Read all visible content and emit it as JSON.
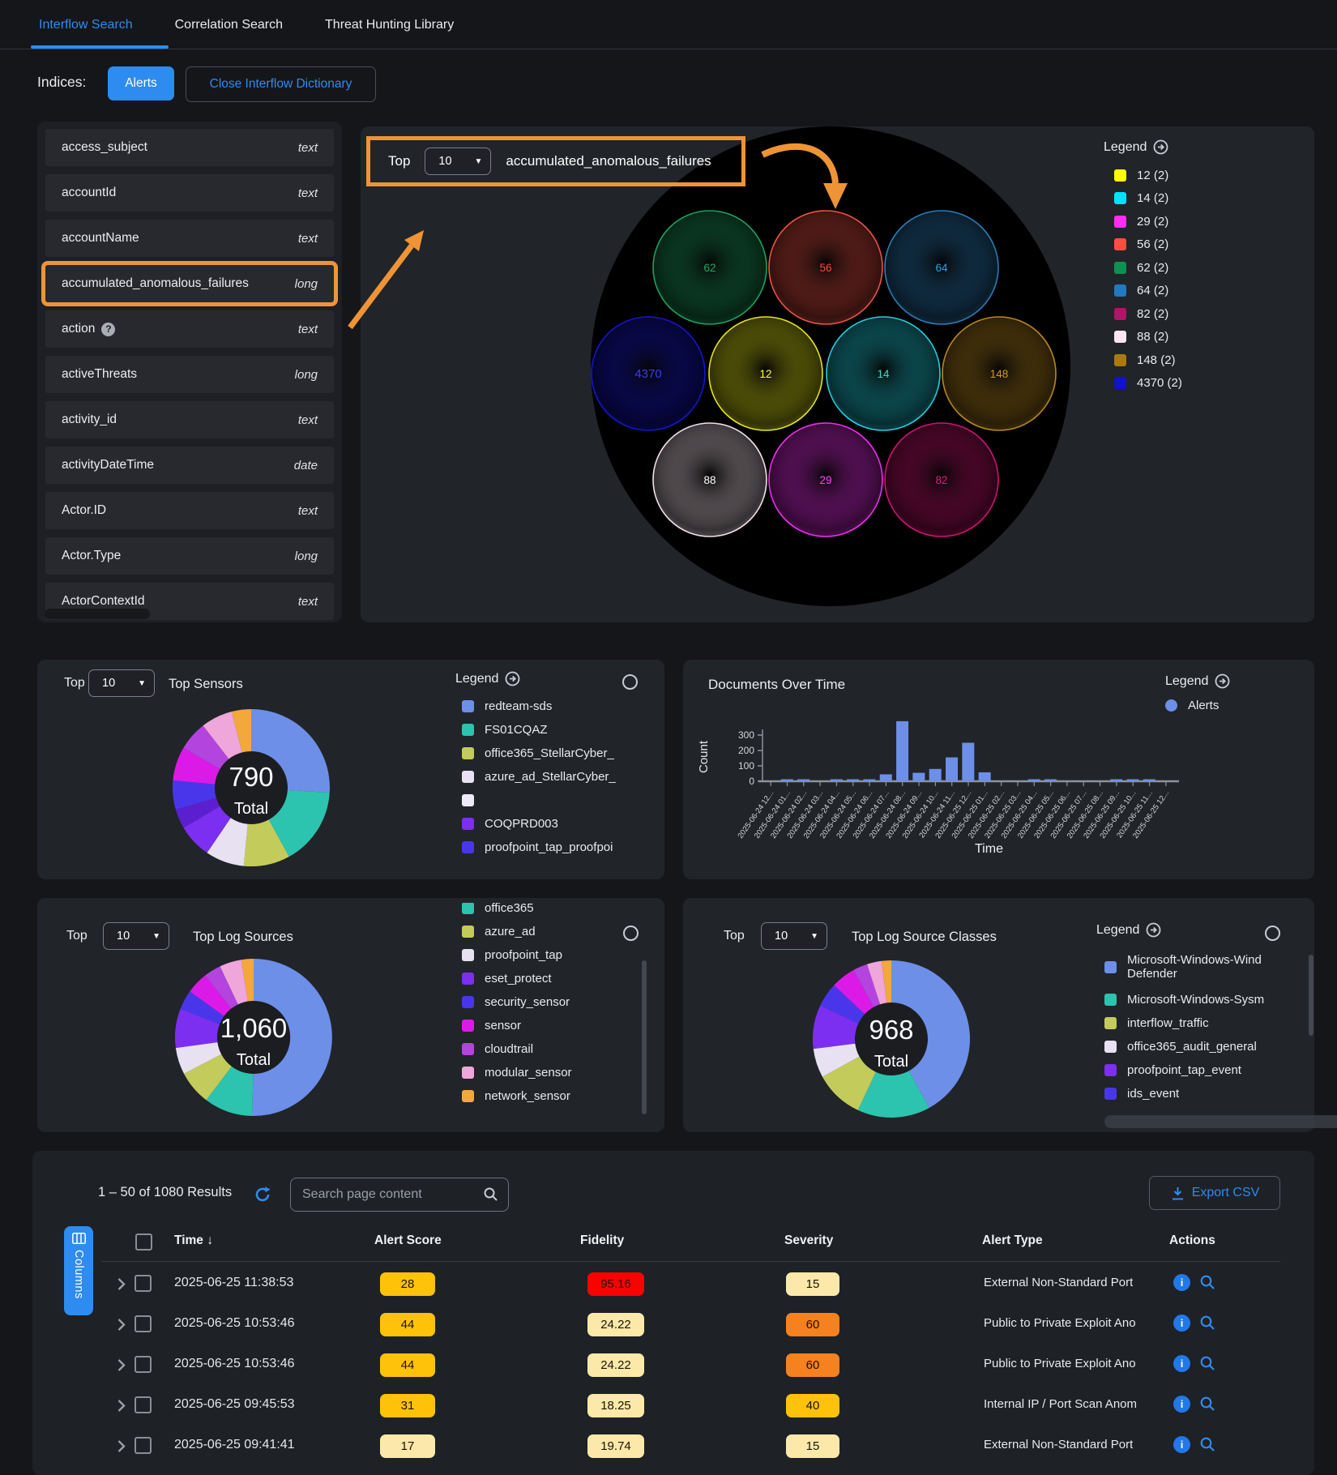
{
  "tabs": [
    {
      "label": "Interflow Search",
      "active": true
    },
    {
      "label": "Correlation Search",
      "active": false
    },
    {
      "label": "Threat Hunting Library",
      "active": false
    }
  ],
  "indices": {
    "label": "Indices:",
    "alerts": "Alerts",
    "close": "Close Interflow Dictionary"
  },
  "fields": {
    "items": [
      {
        "name": "access_subject",
        "type": "text"
      },
      {
        "name": "accountId",
        "type": "text"
      },
      {
        "name": "accountName",
        "type": "text"
      },
      {
        "name": "accumulated_anomalous_failures",
        "type": "long",
        "highlighted": true
      },
      {
        "name": "action",
        "type": "text",
        "help": true
      },
      {
        "name": "activeThreats",
        "type": "long"
      },
      {
        "name": "activity_id",
        "type": "text"
      },
      {
        "name": "activityDateTime",
        "type": "date"
      },
      {
        "name": "Actor.ID",
        "type": "text"
      },
      {
        "name": "Actor.Type",
        "type": "long"
      },
      {
        "name": "ActorContextId",
        "type": "text"
      }
    ]
  },
  "bubble": {
    "top_label": "Top",
    "top_value": "10",
    "title": "accumulated_anomalous_failures",
    "legend_title": "Legend",
    "type": "packed-bubbles",
    "bubbles": [
      {
        "value": "62",
        "color": "#1ca05e",
        "text_color": "#18b060"
      },
      {
        "value": "56",
        "color": "#ef5044",
        "text_color": "#ff453a"
      },
      {
        "value": "64",
        "color": "#2b7cb8",
        "text_color": "#2da0e8"
      },
      {
        "value": "4370",
        "color": "#1515d0",
        "text_color": "#3c3cf0"
      },
      {
        "value": "12",
        "color": "#e4e414",
        "text_color": "#ffff3a"
      },
      {
        "value": "14",
        "color": "#1ecfe0",
        "text_color": "#20e8c8"
      },
      {
        "value": "148",
        "color": "#b8871c",
        "text_color": "#cf9a1e"
      },
      {
        "value": "88",
        "color": "#f2dfe9",
        "text_color": "#ffffff"
      },
      {
        "value": "29",
        "color": "#f02cf0",
        "text_color": "#ff45ff"
      },
      {
        "value": "82",
        "color": "#d01272",
        "text_color": "#ef1680"
      }
    ],
    "legend": [
      {
        "label": "12 (2)",
        "color": "#ffff00"
      },
      {
        "label": "14 (2)",
        "color": "#00e0ff"
      },
      {
        "label": "29 (2)",
        "color": "#ff2ef0"
      },
      {
        "label": "56 (2)",
        "color": "#ff4d42"
      },
      {
        "label": "62 (2)",
        "color": "#0d9152"
      },
      {
        "label": "64 (2)",
        "color": "#2279bd"
      },
      {
        "label": "82 (2)",
        "color": "#b01568"
      },
      {
        "label": "88 (2)",
        "color": "#ffe6f2"
      },
      {
        "label": "148 (2)",
        "color": "#a87a16"
      },
      {
        "label": "4370 (2)",
        "color": "#1212c8"
      }
    ]
  },
  "sensors": {
    "top_label": "Top",
    "top_value": "10",
    "title": "Top Sensors",
    "total": "790",
    "total_label": "Total",
    "legend_title": "Legend",
    "type": "donut",
    "slices": [
      {
        "pct": 26,
        "color": "#6e8fe8"
      },
      {
        "pct": 16,
        "color": "#2cc4ae"
      },
      {
        "pct": 9.5,
        "color": "#c3cc5a"
      },
      {
        "pct": 8,
        "color": "#e7e1f2"
      },
      {
        "pct": 7,
        "color": "#7c2ff0"
      },
      {
        "pct": 4,
        "color": "#5b1fd0"
      },
      {
        "pct": 6,
        "color": "#4a36ea"
      },
      {
        "pct": 7,
        "color": "#dc1ae8"
      },
      {
        "pct": 6,
        "color": "#b344de"
      },
      {
        "pct": 6.5,
        "color": "#efa6da"
      },
      {
        "pct": 4,
        "color": "#f3a83c"
      }
    ],
    "legend": [
      {
        "label": "redteam-sds",
        "color": "#6e8fe8"
      },
      {
        "label": "FS01CQAZ",
        "color": "#2cc4ae"
      },
      {
        "label": "office365_StellarCyber_",
        "color": "#c3cc5a"
      },
      {
        "label": "azure_ad_StellarCyber_",
        "color": "#e7e1f2"
      },
      {
        "label": "",
        "color": "#efeaf8"
      },
      {
        "label": "COQPRD003",
        "color": "#7c2ff0"
      },
      {
        "label": "proofpoint_tap_proofpoi",
        "color": "#4a36ea"
      }
    ]
  },
  "docs": {
    "title": "Documents Over Time",
    "legend_title": "Legend",
    "series": "Alerts",
    "color": "#6e8fe8",
    "ylabel": "Count",
    "xlabel": "Time",
    "type": "bar",
    "yticks": [
      "0",
      "100",
      "200",
      "300"
    ],
    "ymax": 390,
    "x_labels": [
      "2025-06-24 12...",
      "2025-06-24 01...",
      "2025-06-24 02...",
      "2025-06-24 03...",
      "2025-06-24 04...",
      "2025-06-24 05...",
      "2025-06-24 06...",
      "2025-06-24 07...",
      "2025-06-24 08...",
      "2025-06-24 09...",
      "2025-06-24 10...",
      "2025-06-24 11...",
      "2025-06-25 12...",
      "2025-06-25 01...",
      "2025-06-25 02...",
      "2025-06-25 03...",
      "2025-06-25 04...",
      "2025-06-25 05...",
      "2025-06-25 06...",
      "2025-06-25 07...",
      "2025-06-25 08...",
      "2025-06-25 09...",
      "2025-06-25 10...",
      "2025-06-25 11...",
      "2025-06-25 12..."
    ],
    "values": [
      0,
      8,
      8,
      0,
      6,
      12,
      10,
      45,
      390,
      55,
      80,
      155,
      250,
      58,
      0,
      0,
      10,
      10,
      0,
      0,
      0,
      3,
      3,
      3,
      0
    ]
  },
  "sources": {
    "top_label": "Top",
    "top_value": "10",
    "title": "Top Log Sources",
    "total": "1,060",
    "total_label": "Total",
    "type": "donut",
    "slices": [
      {
        "pct": 50,
        "color": "#6e8fe8"
      },
      {
        "pct": 10,
        "color": "#2cc4ae"
      },
      {
        "pct": 7,
        "color": "#c3cc5a"
      },
      {
        "pct": 5.5,
        "color": "#e7e1f2"
      },
      {
        "pct": 8,
        "color": "#7c2ff0"
      },
      {
        "pct": 4,
        "color": "#4a36ea"
      },
      {
        "pct": 4.5,
        "color": "#dc1ae8"
      },
      {
        "pct": 3.5,
        "color": "#b344de"
      },
      {
        "pct": 4.5,
        "color": "#efa6da"
      },
      {
        "pct": 2.5,
        "color": "#f3a83c"
      }
    ],
    "legend": [
      {
        "label": "office365",
        "color": "#2cc4ae"
      },
      {
        "label": "azure_ad",
        "color": "#c3cc5a"
      },
      {
        "label": "proofpoint_tap",
        "color": "#e7e1f2"
      },
      {
        "label": "eset_protect",
        "color": "#7c2ff0"
      },
      {
        "label": "security_sensor",
        "color": "#4a36ea"
      },
      {
        "label": "sensor",
        "color": "#dc1ae8"
      },
      {
        "label": "cloudtrail",
        "color": "#b344de"
      },
      {
        "label": "modular_sensor",
        "color": "#efa6da"
      },
      {
        "label": "network_sensor",
        "color": "#f3a83c"
      }
    ]
  },
  "classes": {
    "top_label": "Top",
    "top_value": "10",
    "title": "Top Log Source Classes",
    "total": "968",
    "total_label": "Total",
    "legend_title": "Legend",
    "type": "donut",
    "slices": [
      {
        "pct": 42,
        "color": "#6e8fe8"
      },
      {
        "pct": 15,
        "color": "#2cc4ae"
      },
      {
        "pct": 10,
        "color": "#c3cc5a"
      },
      {
        "pct": 6,
        "color": "#e7e1f2"
      },
      {
        "pct": 9,
        "color": "#7c2ff0"
      },
      {
        "pct": 5,
        "color": "#4a36ea"
      },
      {
        "pct": 5,
        "color": "#dc1ae8"
      },
      {
        "pct": 3,
        "color": "#b344de"
      },
      {
        "pct": 3,
        "color": "#efa6da"
      },
      {
        "pct": 2,
        "color": "#f3a83c"
      }
    ],
    "legend": [
      {
        "label": "Microsoft-Windows-Wind",
        "label2": "Defender",
        "color": "#6e8fe8"
      },
      {
        "label": "Microsoft-Windows-Sysm",
        "color": "#2cc4ae"
      },
      {
        "label": "interflow_traffic",
        "color": "#c3cc5a"
      },
      {
        "label": "office365_audit_general",
        "color": "#e7e1f2"
      },
      {
        "label": "proofpoint_tap_event",
        "color": "#7c2ff0"
      },
      {
        "label": "ids_event",
        "color": "#4a36ea"
      }
    ]
  },
  "table": {
    "results": "1 – 50 of 1080 Results",
    "search_placeholder": "Search page content",
    "export_label": "Export CSV",
    "columns_label": "Columns",
    "headers": {
      "time": "Time",
      "score": "Alert Score",
      "fidelity": "Fidelity",
      "severity": "Severity",
      "type": "Alert Type",
      "actions": "Actions"
    },
    "badge_colors": {
      "gold": "#ffc20a",
      "cream": "#fce9a9",
      "orange": "#f5811f",
      "red": "#ff0000"
    },
    "rows": [
      {
        "time": "2025-06-25 11:38:53",
        "score": "28",
        "score_color": "gold",
        "fidelity": "95.16",
        "fidelity_color": "red",
        "severity": "15",
        "severity_color": "cream",
        "type": "External Non-Standard Port"
      },
      {
        "time": "2025-06-25 10:53:46",
        "score": "44",
        "score_color": "gold",
        "fidelity": "24.22",
        "fidelity_color": "cream",
        "severity": "60",
        "severity_color": "orange",
        "type": "Public to Private Exploit Ano"
      },
      {
        "time": "2025-06-25 10:53:46",
        "score": "44",
        "score_color": "gold",
        "fidelity": "24.22",
        "fidelity_color": "cream",
        "severity": "60",
        "severity_color": "orange",
        "type": "Public to Private Exploit Ano"
      },
      {
        "time": "2025-06-25 09:45:53",
        "score": "31",
        "score_color": "gold",
        "fidelity": "18.25",
        "fidelity_color": "cream",
        "severity": "40",
        "severity_color": "gold",
        "type": "Internal IP / Port Scan Anom"
      },
      {
        "time": "2025-06-25 09:41:41",
        "score": "17",
        "score_color": "cream",
        "fidelity": "19.74",
        "fidelity_color": "cream",
        "severity": "15",
        "severity_color": "cream",
        "type": "External Non-Standard Port"
      }
    ]
  }
}
